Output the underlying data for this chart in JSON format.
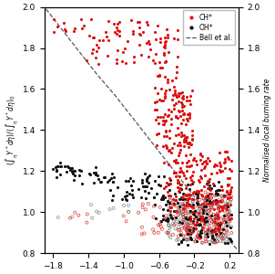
{
  "xlim": [
    -1.9,
    0.3
  ],
  "ylim": [
    0.8,
    2.0
  ],
  "xlabel": "",
  "ylabel_left": "$(\\int_\\eta Y^* d\\eta) / (\\int_\\eta Y^* d\\eta)_0$",
  "ylabel_right": "Normalised local burning rate",
  "xticks": [
    -1.8,
    -1.4,
    -1.0,
    -0.6,
    -0.2,
    0.2
  ],
  "yticks": [
    0.8,
    1.0,
    1.2,
    1.4,
    1.6,
    1.8,
    2.0
  ],
  "bell_x": [
    -1.88,
    -1.7,
    -1.5,
    -1.3,
    -1.1,
    -0.9,
    -0.7,
    -0.5,
    -0.3,
    -0.1,
    0.1,
    0.28
  ],
  "bell_y": [
    1.99,
    1.89,
    1.78,
    1.67,
    1.57,
    1.46,
    1.35,
    1.24,
    1.13,
    1.02,
    0.91,
    0.82
  ],
  "ch_filled_color": "#dd1111",
  "oh_filled_color": "#111111",
  "ch_open_color": "#dd1111",
  "oh_open_color": "#777777",
  "background_color": "#ffffff"
}
